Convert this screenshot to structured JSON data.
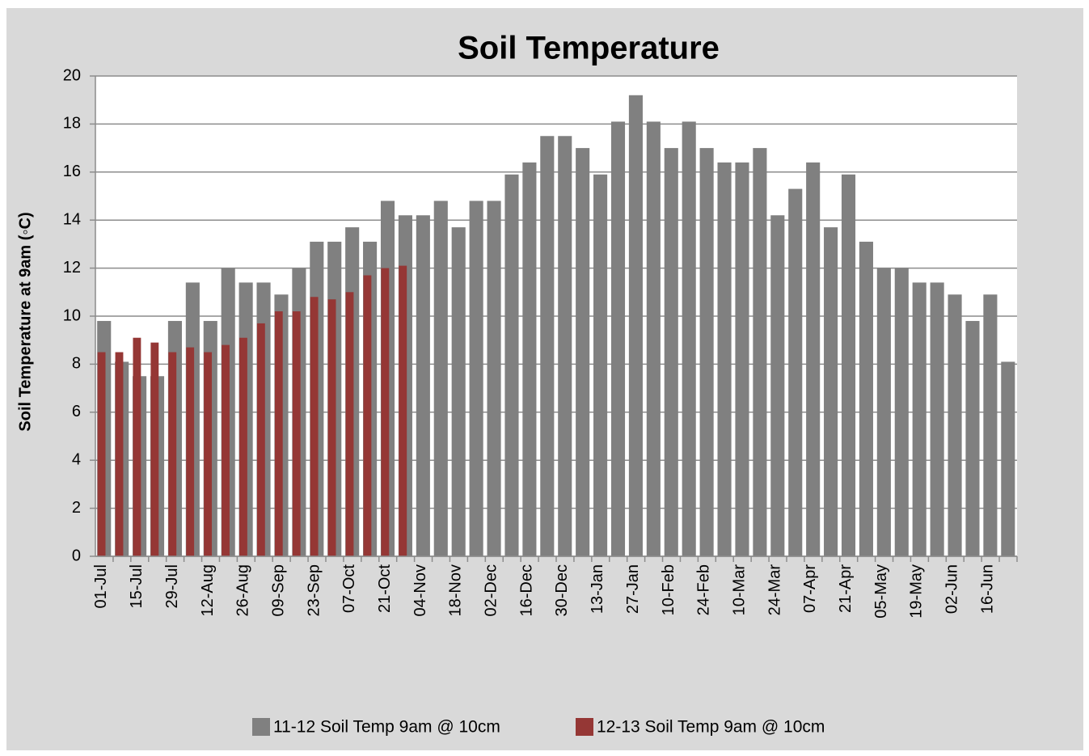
{
  "chart_data": {
    "type": "bar",
    "title": "Soil Temperature",
    "y_label": "Soil Temperature at 9am  (◦C)",
    "categories": [
      "01-Jul",
      null,
      "15-Jul",
      null,
      "29-Jul",
      null,
      "12-Aug",
      null,
      "26-Aug",
      null,
      "09-Sep",
      null,
      "23-Sep",
      null,
      "07-Oct",
      null,
      "21-Oct",
      null,
      "04-Nov",
      null,
      "18-Nov",
      null,
      "02-Dec",
      null,
      "16-Dec",
      null,
      "30-Dec",
      null,
      "13-Jan",
      null,
      "27-Jan",
      null,
      "10-Feb",
      null,
      "24-Feb",
      null,
      "10-Mar",
      null,
      "24-Mar",
      null,
      "07-Apr",
      null,
      "21-Apr",
      null,
      "05-May",
      null,
      "19-May",
      null,
      "02-Jun",
      null,
      "16-Jun",
      null
    ],
    "series": [
      {
        "name": "11-12 Soil Temp 9am @ 10cm",
        "color": "#808080",
        "values": [
          9.8,
          8.1,
          7.5,
          7.5,
          9.8,
          11.4,
          9.8,
          12.0,
          11.4,
          11.4,
          10.9,
          12.0,
          13.1,
          13.1,
          13.7,
          13.1,
          14.8,
          14.2,
          14.2,
          14.8,
          13.7,
          14.8,
          14.8,
          15.9,
          16.4,
          17.5,
          17.5,
          17.0,
          15.9,
          18.1,
          19.2,
          18.1,
          17.0,
          18.1,
          17.0,
          16.4,
          16.4,
          17.0,
          14.2,
          15.3,
          16.4,
          13.7,
          15.9,
          13.1,
          12.0,
          12.0,
          11.4,
          11.4,
          10.9,
          9.8,
          10.9,
          8.1
        ]
      },
      {
        "name": "12-13 Soil Temp 9am @ 10cm",
        "color": "#953735",
        "values": [
          8.5,
          8.5,
          9.1,
          8.9,
          8.5,
          8.7,
          8.5,
          8.8,
          9.1,
          9.7,
          10.2,
          10.2,
          10.8,
          10.7,
          11.0,
          11.7,
          12.0,
          12.1,
          null,
          null,
          null,
          null,
          null,
          null,
          null,
          null,
          null,
          null,
          null,
          null,
          null,
          null,
          null,
          null,
          null,
          null,
          null,
          null,
          null,
          null,
          null,
          null,
          null,
          null,
          null,
          null,
          null,
          null,
          null,
          null,
          null,
          null
        ]
      }
    ],
    "ylim": [
      0,
      20
    ],
    "yticks": [
      0,
      2,
      4,
      6,
      8,
      10,
      12,
      14,
      16,
      18,
      20
    ],
    "grid": true
  }
}
